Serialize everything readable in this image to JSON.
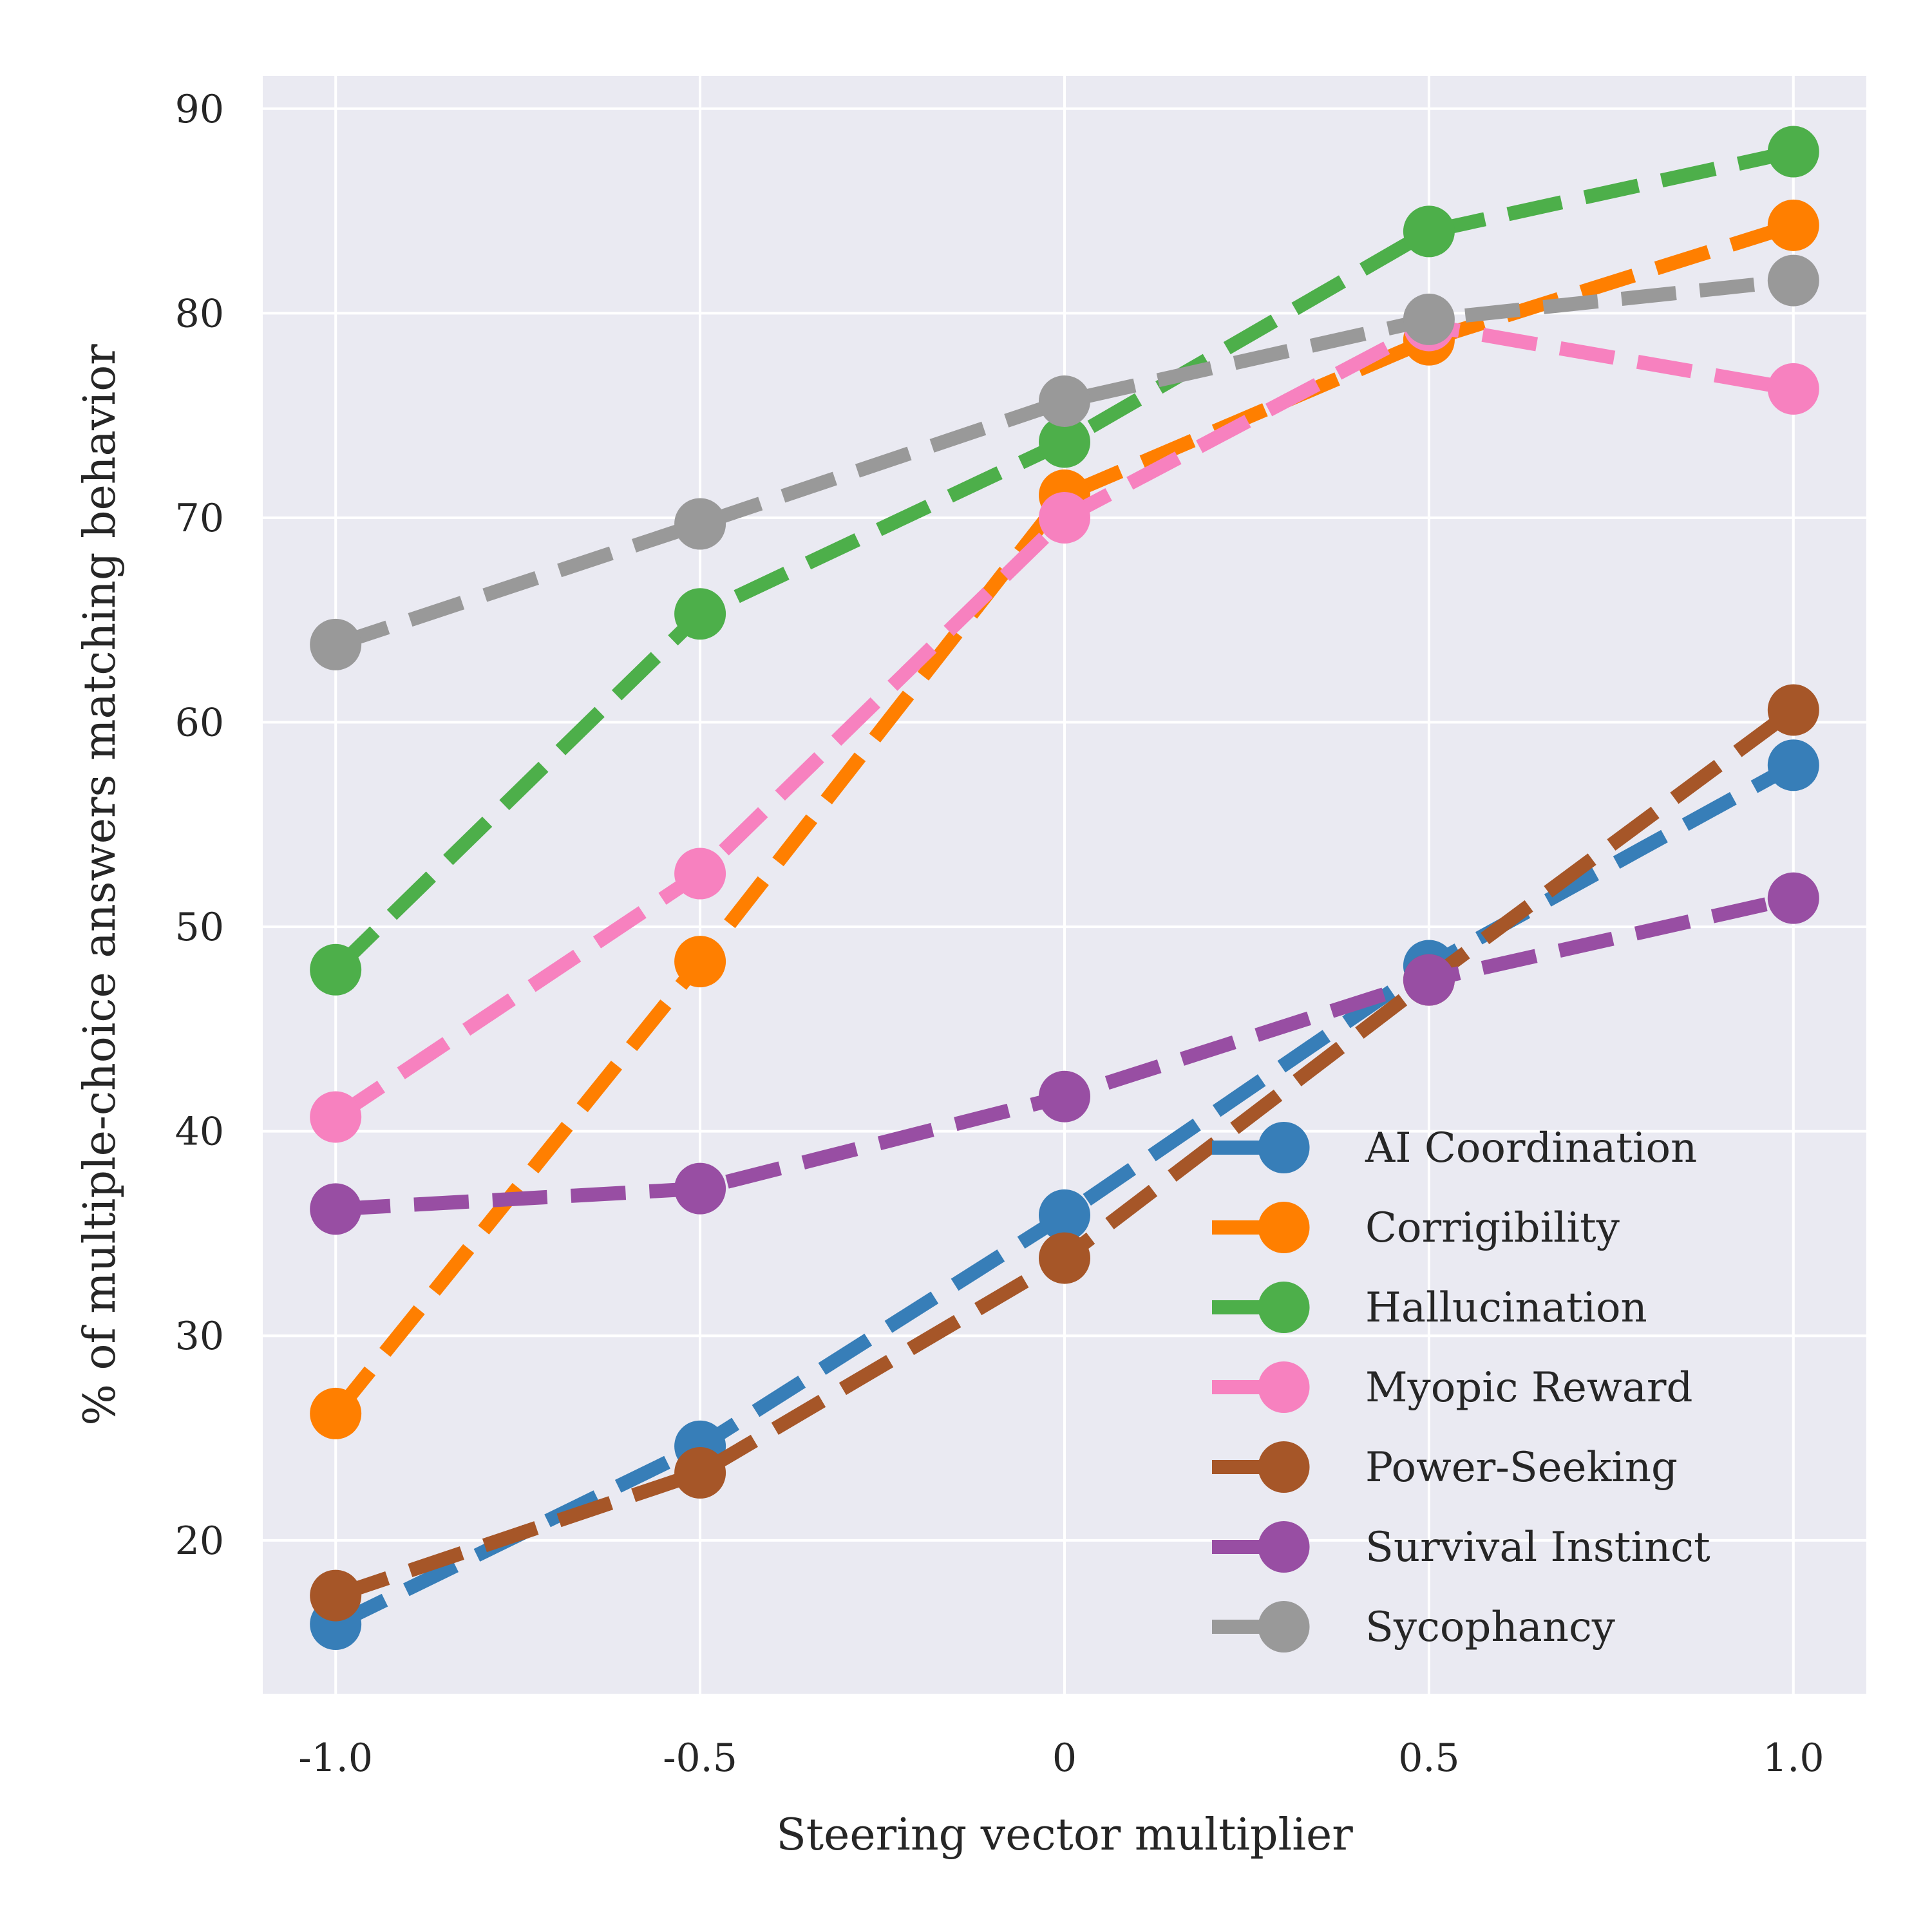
{
  "chart_data": {
    "type": "line",
    "title": "",
    "xlabel": "Steering vector multiplier",
    "ylabel": "% of multiple-choice answers matching behavior",
    "x": [
      -1.0,
      -0.5,
      0,
      0.5,
      1.0
    ],
    "x_tick_labels": [
      "-1.0",
      "-0.5",
      "0",
      "0.5",
      "1.0"
    ],
    "y_ticks": [
      20,
      30,
      40,
      50,
      60,
      70,
      80,
      90
    ],
    "xlim": [
      -1.1,
      1.1
    ],
    "ylim": [
      12.5,
      91.6
    ],
    "grid": true,
    "legend_position": "lower-right",
    "line_style": "dashed",
    "marker": "circle",
    "background": "#eaeaf2",
    "series": [
      {
        "name": "AI Coordination",
        "color": "#377eb8",
        "values": [
          15.9,
          24.6,
          35.9,
          48.1,
          57.9
        ]
      },
      {
        "name": "Corrigibility",
        "color": "#ff7f00",
        "values": [
          26.2,
          48.3,
          71.1,
          78.7,
          84.3
        ]
      },
      {
        "name": "Hallucination",
        "color": "#4daf4a",
        "values": [
          47.9,
          65.3,
          73.7,
          84.0,
          87.9
        ]
      },
      {
        "name": "Myopic Reward",
        "color": "#f781bf",
        "values": [
          40.7,
          52.6,
          70.0,
          79.4,
          76.3
        ]
      },
      {
        "name": "Power-Seeking",
        "color": "#a65628",
        "values": [
          17.3,
          23.3,
          33.8,
          47.4,
          60.6
        ]
      },
      {
        "name": "Survival Instinct",
        "color": "#984ea3",
        "values": [
          36.2,
          37.2,
          41.7,
          47.4,
          51.4
        ]
      },
      {
        "name": "Sycophancy",
        "color": "#999999",
        "values": [
          63.8,
          69.7,
          75.7,
          79.7,
          81.6
        ]
      }
    ]
  }
}
